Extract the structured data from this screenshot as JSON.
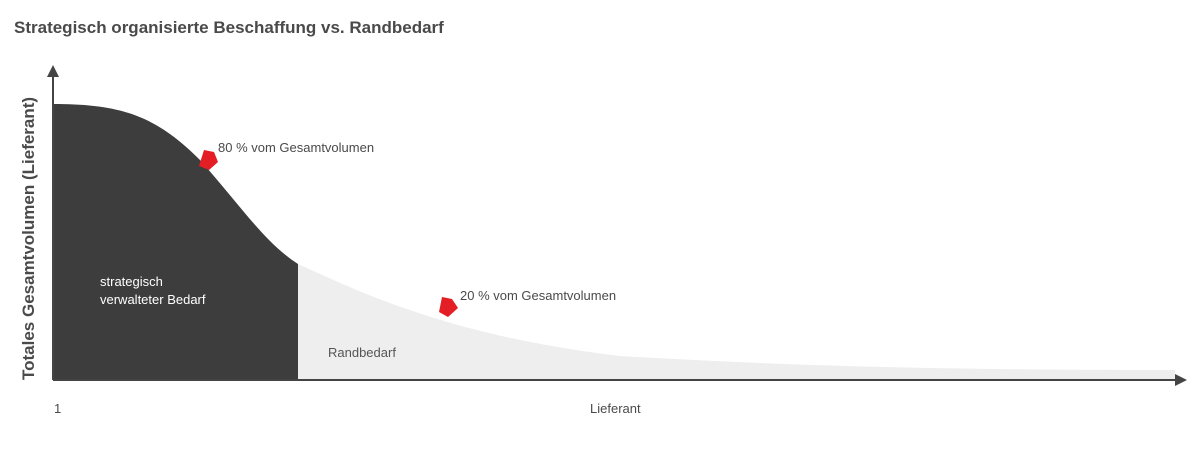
{
  "chart_data": {
    "type": "area",
    "title": "Strategisch organisierte Beschaffung vs. Randbedarf",
    "xlabel": "Lieferant",
    "ylabel": "Totales Gesamtvolumen (Lieferant)",
    "x_tick_labels": [
      "1"
    ],
    "regions": [
      {
        "label_lines": [
          "strategisch",
          "verwalteter Bedarf"
        ],
        "share_percent": 80,
        "color": "#3d3d3d"
      },
      {
        "label": "Randbedarf",
        "share_percent": 20,
        "color": "#eeeeee"
      }
    ],
    "annotations": [
      {
        "text": "80 % vom Gesamtvolumen",
        "marker": "red-pentagon-icon",
        "color": "#e31e24"
      },
      {
        "text": "20 % vom Gesamtvolumen",
        "marker": "red-pentagon-icon",
        "color": "#e31e24"
      }
    ],
    "grid": false,
    "legend": false
  }
}
